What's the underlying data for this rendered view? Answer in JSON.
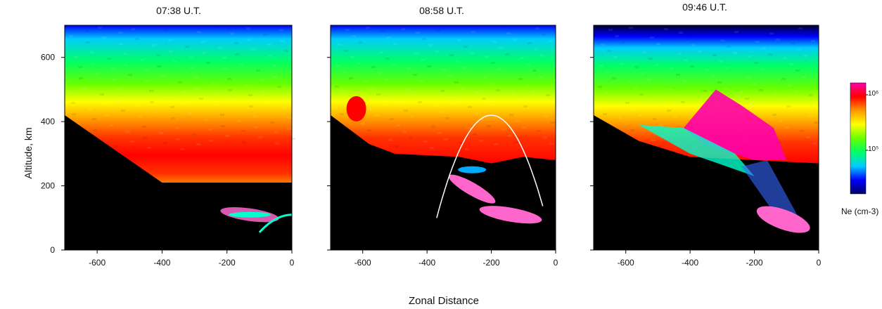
{
  "chart_data": [
    {
      "type": "heatmap",
      "title": "07:38 U.T.",
      "ylabel": "Altitude, km",
      "xlim": [
        -700,
        0
      ],
      "ylim": [
        0,
        700
      ],
      "x_ticks": [
        "-600",
        "-400",
        "-200",
        "0"
      ],
      "y_ticks": [
        "0",
        "200",
        "400",
        "600"
      ],
      "features": [
        {
          "name": "F-layer band",
          "altitude_km": [
            220,
            560
          ],
          "peak_altitude_km": 380
        },
        {
          "name": "structured patch",
          "x_km": [
            -210,
            -40
          ],
          "altitude_km": [
            80,
            140
          ]
        }
      ]
    },
    {
      "type": "heatmap",
      "title": "08:58 U.T.",
      "xlim": [
        -700,
        0
      ],
      "ylim": [
        0,
        700
      ],
      "x_ticks": [
        "-600",
        "-400",
        "-200",
        "0"
      ],
      "y_ticks": [
        "0",
        "200",
        "400",
        "600"
      ],
      "features": [
        {
          "name": "F-layer band",
          "altitude_km": [
            300,
            560
          ],
          "peak_altitude_km": 420
        },
        {
          "name": "arc overlay",
          "x_km": [
            -370,
            -40
          ],
          "peak_x_km": -200,
          "peak_altitude_km": 420
        },
        {
          "name": "plume",
          "x_km": [
            -320,
            -120
          ],
          "altitude_km": [
            60,
            220
          ]
        }
      ]
    },
    {
      "type": "heatmap",
      "title": "09:46 U.T.",
      "xlim": [
        -700,
        0
      ],
      "ylim": [
        0,
        700
      ],
      "x_ticks": [
        "-600",
        "-400",
        "-200",
        "0"
      ],
      "y_ticks": [
        "0",
        "200",
        "400",
        "600"
      ],
      "features": [
        {
          "name": "F-layer band",
          "altitude_km": [
            300,
            560
          ],
          "peak_altitude_km": 420
        },
        {
          "name": "plume",
          "x_km": [
            -420,
            -60
          ],
          "altitude_km": [
            60,
            500
          ]
        }
      ]
    }
  ],
  "shared": {
    "xlabel": "Zonal Distance",
    "ylabel": "Altitude, km"
  },
  "colorbar": {
    "label": "Ne (cm-3)",
    "ticks": [
      "10⁶",
      "10⁵"
    ],
    "colors": [
      "#000066",
      "#0000ff",
      "#00ccff",
      "#00ff66",
      "#66ff00",
      "#ffff00",
      "#ff9900",
      "#ff0000",
      "#ff00aa"
    ]
  },
  "colors": {
    "shadow": "#000000",
    "arc": "#ffffff"
  }
}
